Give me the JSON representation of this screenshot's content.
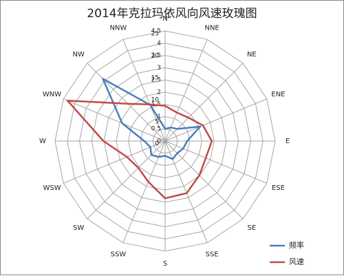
{
  "chart_data": {
    "type": "radar",
    "title": "2014年克拉玛依风向风速玫瑰图",
    "categories": [
      "N",
      "NNE",
      "NE",
      "ENE",
      "E",
      "ESE",
      "SE",
      "SSE",
      "S",
      "SSW",
      "SW",
      "WSW",
      "W",
      "WNW",
      "NW",
      "NNW"
    ],
    "ylim": [
      0,
      4.5
    ],
    "yticks": [
      0,
      0.5,
      1,
      1.5,
      2,
      2.5,
      3,
      3.5,
      4,
      4.5
    ],
    "y2lim": [
      0,
      25
    ],
    "y2ticks": [
      0,
      5,
      10,
      15,
      20,
      25
    ],
    "grid": true,
    "legend": "bottom-right",
    "series": [
      {
        "name": "频率",
        "color": "#4a7ebb",
        "values": [
          0.5,
          0.6,
          0.7,
          1.55,
          0.9,
          0.8,
          0.7,
          0.8,
          0.6,
          0.7,
          0.8,
          0.65,
          0.85,
          1.9,
          3.6,
          1.6
        ]
      },
      {
        "name": "风速",
        "color": "#be4b48",
        "axis": "y2",
        "values": [
          8,
          7,
          7.5,
          9.3,
          10.6,
          10,
          11,
          12.8,
          13,
          10,
          8.6,
          9.4,
          14,
          24,
          12,
          9
        ]
      }
    ]
  }
}
